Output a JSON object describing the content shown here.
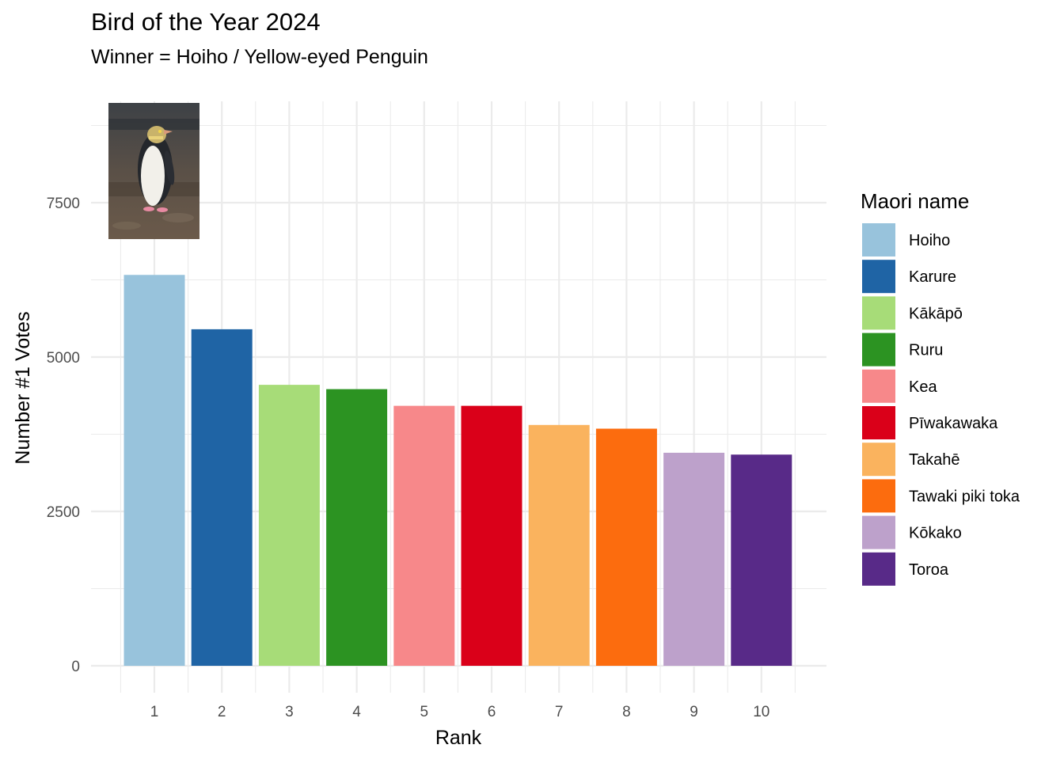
{
  "chart_data": {
    "type": "bar",
    "title": "Bird of the Year 2024",
    "subtitle": "Winner = Hoiho / Yellow-eyed Penguin",
    "xlabel": "Rank",
    "ylabel": "Number #1 Votes",
    "categories": [
      "1",
      "2",
      "3",
      "4",
      "5",
      "6",
      "7",
      "8",
      "9",
      "10"
    ],
    "names": [
      "Hoiho",
      "Karure",
      "Kākāpō",
      "Ruru",
      "Kea",
      "Pīwakawaka",
      "Takahē",
      "Tawaki piki toka",
      "Kōkako",
      "Toroa"
    ],
    "values": [
      6330,
      5450,
      4550,
      4480,
      4210,
      4210,
      3900,
      3840,
      3450,
      3420
    ],
    "colors": [
      "#98C3DC",
      "#1F64A5",
      "#A7DC78",
      "#2C9322",
      "#F7888A",
      "#DA0019",
      "#FAB35E",
      "#FC6C0E",
      "#BDA1CB",
      "#582A88"
    ],
    "yticks": [
      0,
      2500,
      5000,
      7500
    ],
    "ylim": [
      -400,
      9250
    ],
    "grid": true,
    "legend_title": "Maori name",
    "legend_position": "right",
    "annotation": "yellow-eyed-penguin-photo"
  }
}
